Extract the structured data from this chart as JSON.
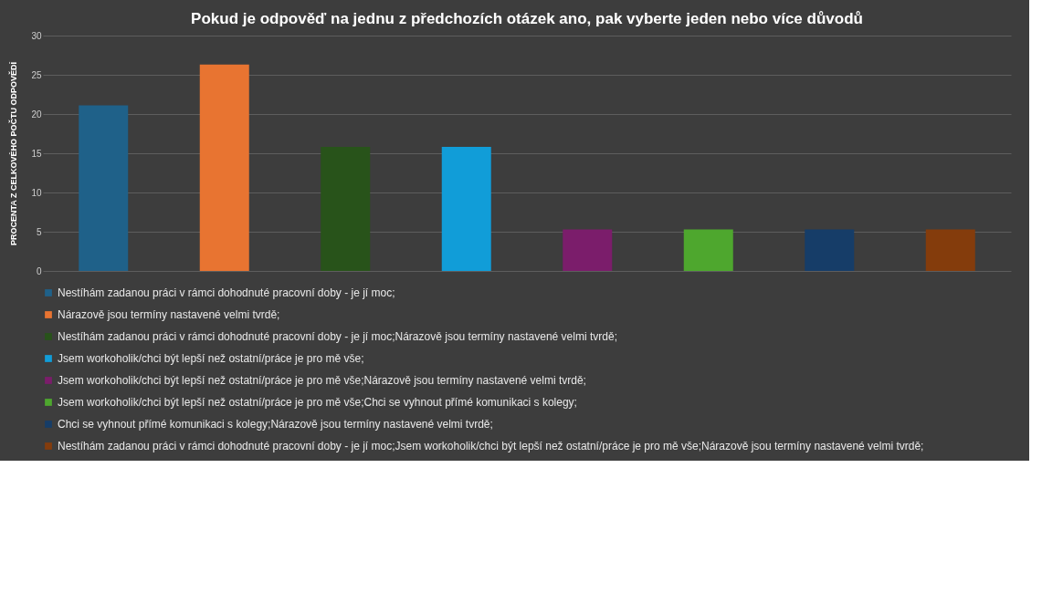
{
  "chart_data": {
    "type": "bar",
    "title": "Pokud je odpověď na jednu z předchozích otázek ano, pak vyberte jeden nebo více důvodů",
    "ylabel": "PROCENTA Z CELKOVÉHO POČTU ODPOVĚDÍ",
    "categories": [
      null,
      null,
      null,
      null,
      null,
      null,
      null,
      null
    ],
    "series": [
      {
        "name": "Nestíhám zadanou práci v rámci dohodnuté pracovní doby - je jí moc;",
        "color": "#1f6189",
        "values": [
          21.1,
          null,
          null,
          null,
          null,
          null,
          null,
          null
        ]
      },
      {
        "name": "Nárazově jsou termíny nastavené velmi tvrdě;",
        "color": "#e87431",
        "values": [
          null,
          26.3,
          null,
          null,
          null,
          null,
          null,
          null
        ]
      },
      {
        "name": "Nestíhám zadanou práci v rámci dohodnuté pracovní doby - je jí moc;Nárazově jsou termíny nastavené velmi tvrdě;",
        "color": "#28531a",
        "values": [
          null,
          null,
          15.8,
          null,
          null,
          null,
          null,
          null
        ]
      },
      {
        "name": "Jsem workoholik/chci být lepší než ostatní/práce je pro mě vše;",
        "color": "#119dd8",
        "values": [
          null,
          null,
          null,
          15.8,
          null,
          null,
          null,
          null
        ]
      },
      {
        "name": "Jsem workoholik/chci být lepší než ostatní/práce je pro mě vše;Nárazově jsou termíny nastavené velmi tvrdě;",
        "color": "#7b1d6b",
        "values": [
          null,
          null,
          null,
          null,
          5.3,
          null,
          null,
          null
        ]
      },
      {
        "name": "Jsem workoholik/chci být lepší než ostatní/práce je pro mě vše;Chci se vyhnout přímé komunikaci s kolegy;",
        "color": "#4ea72e",
        "values": [
          null,
          null,
          null,
          null,
          null,
          5.3,
          null,
          null
        ]
      },
      {
        "name": "Chci se vyhnout přímé komunikaci s kolegy;Nárazově jsou termíny nastavené velmi tvrdě;",
        "color": "#163d68",
        "values": [
          null,
          null,
          null,
          null,
          null,
          null,
          5.3,
          null
        ]
      },
      {
        "name": "Nestíhám zadanou práci v rámci dohodnuté pracovní doby - je jí moc;Jsem workoholik/chci být lepší než ostatní/práce je pro mě vše;Nárazově jsou termíny nastavené velmi tvrdě;",
        "color": "#843c0c",
        "values": [
          null,
          null,
          null,
          null,
          null,
          null,
          null,
          5.3
        ]
      }
    ],
    "ylim": [
      0,
      30
    ],
    "yticks": [
      0,
      5,
      10,
      15,
      20,
      25,
      30
    ],
    "grid": "y",
    "legend": "bottom",
    "tick_labels": "y"
  }
}
